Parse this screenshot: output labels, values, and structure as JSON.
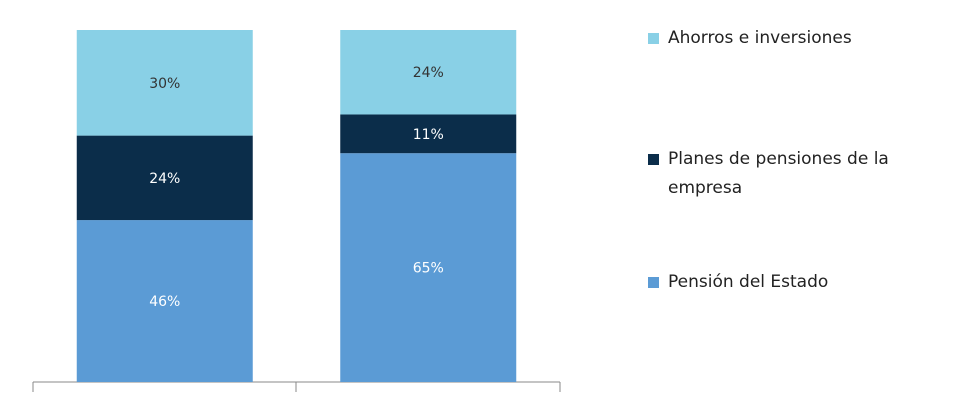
{
  "chart_data": {
    "type": "stacked_bar",
    "categories": [
      null,
      null
    ],
    "ylim": [
      0,
      100
    ],
    "legend": "right",
    "series": [
      {
        "name": "Pensión del Estado",
        "color": "#5b9bd5",
        "values": [
          46,
          65
        ],
        "value_labels": [
          "46%",
          "65%"
        ]
      },
      {
        "name": "Planes de pensiones de la empresa",
        "color": "#0b2d4a",
        "values": [
          24,
          11
        ],
        "value_labels": [
          "24%",
          "11%"
        ]
      },
      {
        "name": "Ahorros e inversiones",
        "color": "#89d0e6",
        "values": [
          30,
          24
        ],
        "value_labels": [
          "30%",
          "24%"
        ]
      }
    ]
  }
}
